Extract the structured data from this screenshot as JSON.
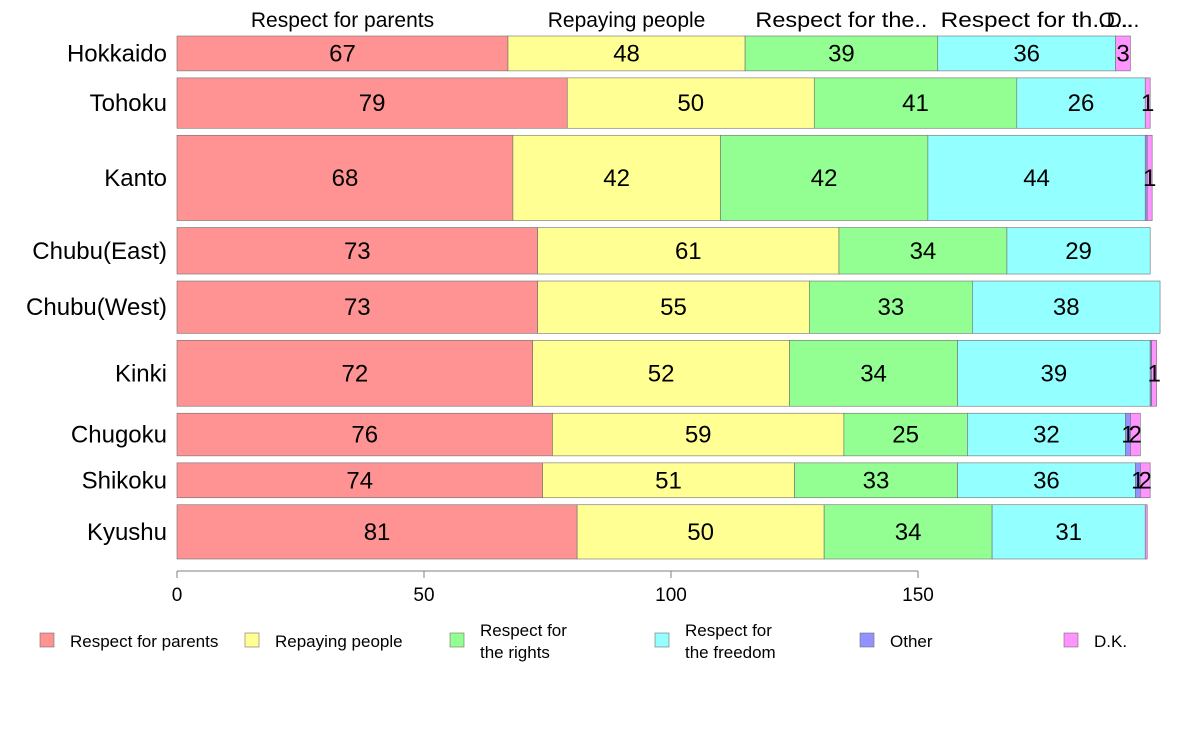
{
  "chart_data": {
    "type": "bar",
    "orientation": "horizontal",
    "stacked": true,
    "categories": [
      "Hokkaido",
      "Tohoku",
      "Kanto",
      "Chubu(East)",
      "Chubu(West)",
      "Kinki",
      "Chugoku",
      "Shikoku",
      "Kyushu"
    ],
    "category_weights": [
      36,
      52,
      88,
      48,
      54,
      68,
      44,
      36,
      56
    ],
    "series": [
      {
        "name": "Respect for parents",
        "legend_lines": [
          "Respect for parents"
        ],
        "top_label": "Respect for parents",
        "color": "#ff9393",
        "values": [
          67,
          79,
          68,
          73,
          73,
          72,
          76,
          74,
          81
        ]
      },
      {
        "name": "Repaying people",
        "legend_lines": [
          "Repaying people"
        ],
        "top_label": "Repaying people",
        "color": "#ffff93",
        "values": [
          48,
          50,
          42,
          61,
          55,
          52,
          59,
          51,
          50
        ]
      },
      {
        "name": "Respect for the rights",
        "legend_lines": [
          "Respect for",
          "the rights"
        ],
        "top_label": "Respect for the..",
        "color": "#93ff93",
        "values": [
          39,
          41,
          42,
          34,
          33,
          34,
          25,
          33,
          34
        ]
      },
      {
        "name": "Respect for the freedom",
        "legend_lines": [
          "Respect for",
          "the freedom"
        ],
        "top_label": "Respect for th...",
        "color": "#93ffff",
        "values": [
          36,
          26,
          44,
          29,
          38,
          39,
          32,
          36,
          31
        ]
      },
      {
        "name": "Other",
        "legend_lines": [
          "Other"
        ],
        "top_label": "O...",
        "color": "#9393ff",
        "values": [
          0,
          0,
          0.4,
          0,
          0,
          0.3,
          1,
          1,
          0
        ]
      },
      {
        "name": "D.K.",
        "legend_lines": [
          "D.K."
        ],
        "top_label": "D...",
        "color": "#ff93ff",
        "values": [
          3,
          1,
          1,
          0,
          0,
          1,
          2,
          2,
          0.4
        ]
      }
    ],
    "value_labels": [
      [
        "67",
        "48",
        "39",
        "36",
        "",
        "3"
      ],
      [
        "79",
        "50",
        "41",
        "26",
        "",
        "1"
      ],
      [
        "68",
        "42",
        "42",
        "44",
        "",
        "1"
      ],
      [
        "73",
        "61",
        "34",
        "29",
        "",
        ""
      ],
      [
        "73",
        "55",
        "33",
        "38",
        "",
        ""
      ],
      [
        "72",
        "52",
        "34",
        "39",
        "",
        "1"
      ],
      [
        "76",
        "59",
        "25",
        "32",
        "1",
        "2"
      ],
      [
        "74",
        "51",
        "33",
        "36",
        "1",
        "2"
      ],
      [
        "81",
        "50",
        "34",
        "31",
        "",
        ""
      ]
    ],
    "x_ticks": [
      0,
      50,
      100,
      150
    ],
    "x_tick_labels": [
      "0",
      "50",
      "100",
      "150"
    ],
    "xlim": [
      0,
      200
    ],
    "title": "",
    "xlabel": "",
    "ylabel": "",
    "grid": false,
    "legend_position": "bottom"
  }
}
